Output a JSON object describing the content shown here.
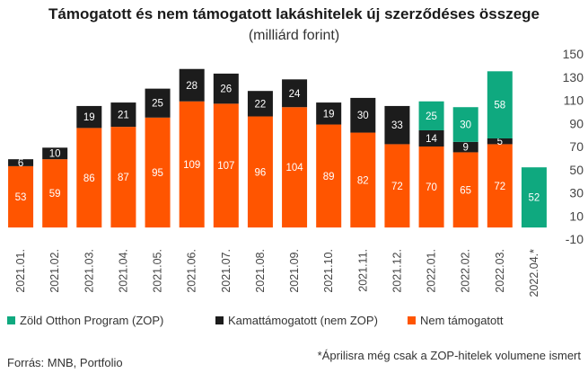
{
  "title": "Támogatott és nem támogatott lakáshitelek új szerződéses összege",
  "subtitle": "(milliárd forint)",
  "colors": {
    "zop": "#0fa97f",
    "kamat": "#1c1c1c",
    "nem": "#ff5500"
  },
  "legend": [
    {
      "key": "zop",
      "label": "Zöld Otthon Program (ZOP)"
    },
    {
      "key": "kamat",
      "label": "Kamattámogatott (nem ZOP)"
    },
    {
      "key": "nem",
      "label": "Nem támogatott"
    }
  ],
  "source": "Forrás: MNB, Portfolio",
  "note": "*Áprilisra még csak a ZOP-hitelek volumene ismert",
  "chart_data": {
    "type": "bar",
    "stacked": true,
    "categories": [
      "2021.01.",
      "2021.02.",
      "2021.03.",
      "2021.04.",
      "2021.05.",
      "2021.06.",
      "2021.07.",
      "2021.08.",
      "2021.09.",
      "2021.10.",
      "2021.11.",
      "2021.12.",
      "2022.01.",
      "2022.02.",
      "2022.03.",
      "2022.04.*"
    ],
    "series": [
      {
        "name": "Nem támogatott",
        "key": "nem",
        "values": [
          53,
          59,
          86,
          87,
          95,
          109,
          107,
          96,
          104,
          89,
          82,
          72,
          70,
          65,
          72,
          null
        ]
      },
      {
        "name": "Kamattámogatott (nem ZOP)",
        "key": "kamat",
        "values": [
          6,
          10,
          19,
          21,
          25,
          28,
          26,
          22,
          24,
          19,
          30,
          33,
          14,
          9,
          5,
          null
        ]
      },
      {
        "name": "Zöld Otthon Program (ZOP)",
        "key": "zop",
        "values": [
          null,
          null,
          null,
          null,
          null,
          null,
          null,
          null,
          null,
          null,
          null,
          null,
          25,
          30,
          58,
          52
        ]
      }
    ],
    "yaxis": {
      "position": "right",
      "ylim": [
        -10,
        150
      ],
      "ticks": [
        150,
        130,
        110,
        90,
        70,
        50,
        30,
        10,
        -10
      ]
    },
    "grid": false,
    "legend_position": "bottom"
  }
}
